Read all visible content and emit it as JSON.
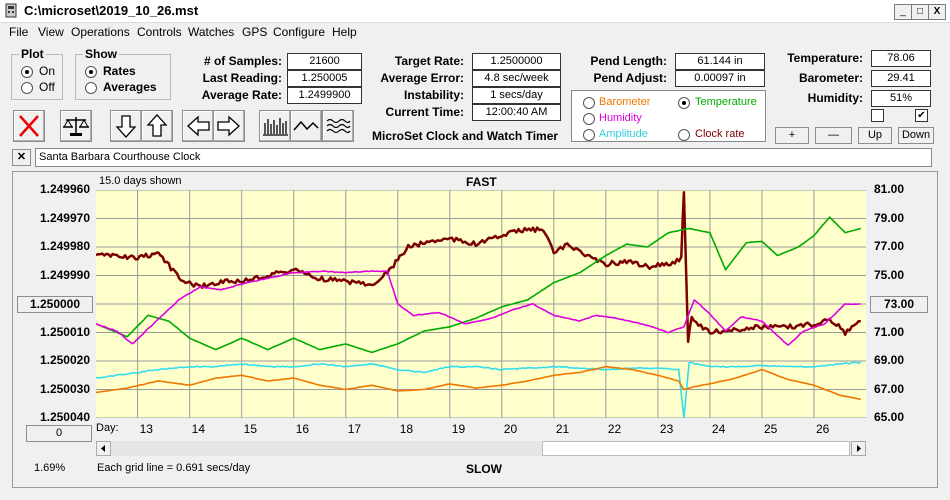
{
  "window": {
    "title": "C:\\microset\\2019_10_26.mst",
    "min": "_",
    "max": "□",
    "close": "X"
  },
  "menu": [
    "File",
    "View",
    "Operations",
    "Controls",
    "Watches",
    "GPS",
    "Configure",
    "Help"
  ],
  "plot_group": {
    "title": "Plot",
    "on": "On",
    "off": "Off",
    "selected": "On"
  },
  "show_group": {
    "title": "Show",
    "rates": "Rates",
    "averages": "Averages",
    "selected": "Rates"
  },
  "stats": {
    "samples_label": "# of Samples:",
    "samples": "21600",
    "last_label": "Last Reading:",
    "last": "1.250005",
    "avg_label": "Average Rate:",
    "avg": "1.2499900",
    "target_label": "Target Rate:",
    "target": "1.2500000",
    "avg_err_label": "Average Error:",
    "avg_err": "4.8 sec/week",
    "instab_label": "Instability:",
    "instab": "1 secs/day",
    "time_label": "Current Time:",
    "time": "12:00:40 AM",
    "pend_len_label": "Pend Length:",
    "pend_len": "61.144 in",
    "pend_adj_label": "Pend Adjust:",
    "pend_adj": "0.00097 in",
    "temp_label": "Temperature:",
    "temp": "78.06",
    "baro_label": "Barometer:",
    "baro": "29.41",
    "hum_label": "Humidity:",
    "hum": "51%"
  },
  "app_caption": "MicroSet Clock and Watch Timer",
  "sensor_options": {
    "barometer": "Barometer",
    "temperature": "Temperature",
    "humidity": "Humidity",
    "amplitude": "Amplitude",
    "clock_rate": "Clock rate",
    "selected": "Temperature"
  },
  "small_buttons": {
    "plus": "+",
    "minus": "—",
    "up": "Up",
    "down": "Down"
  },
  "checkboxes": {
    "left_checked": false,
    "right_checked": true
  },
  "clock_name": "Santa Barbara Courthouse Clock",
  "close_name": "✕",
  "chart_header": {
    "days_shown": "15.0 days shown",
    "fast": "FAST",
    "slow": "SLOW"
  },
  "chart_footer": {
    "grid": "Each grid line = 0.691 secs/day",
    "percent": "1.69%",
    "zero_btn": "0",
    "day_label": "Day:"
  },
  "colors": {
    "rate": "#7b0000",
    "temperature": "#00aa00",
    "humidity": "#dd00dd",
    "amplitude": "#33ddee",
    "barometer": "#ee7700"
  },
  "chart_data": {
    "type": "line",
    "x_label": "Day:",
    "x_ticks": [
      "13",
      "14",
      "15",
      "16",
      "17",
      "18",
      "19",
      "20",
      "21",
      "22",
      "23",
      "24",
      "25",
      "26"
    ],
    "xlim": [
      12.2,
      27.0
    ],
    "y_left_ticks": [
      "1.249960",
      "1.249970",
      "1.249980",
      "1.249990",
      "1.250000",
      "1.250010",
      "1.250020",
      "1.250030",
      "1.250040"
    ],
    "y_left_lim": [
      1.24996,
      1.25004
    ],
    "y_left_highlight": "1.250000",
    "y_right_ticks": [
      "81.00",
      "79.00",
      "77.00",
      "75.00",
      "73.00",
      "71.00",
      "69.00",
      "67.00",
      "65.00"
    ],
    "y_right_lim": [
      65,
      81
    ],
    "y_right_highlight": "73.00",
    "series": [
      {
        "key": "rate",
        "axis": "left",
        "noise": 0.8,
        "points": [
          [
            12.2,
            1.249983
          ],
          [
            12.6,
            1.249983
          ],
          [
            13.0,
            1.249984
          ],
          [
            13.4,
            1.249982
          ],
          [
            13.8,
            1.249991
          ],
          [
            14.2,
            1.249994
          ],
          [
            14.6,
            1.249992
          ],
          [
            15.0,
            1.249992
          ],
          [
            15.5,
            1.24999
          ],
          [
            16.0,
            1.249988
          ],
          [
            16.5,
            1.249991
          ],
          [
            17.0,
            1.249992
          ],
          [
            17.5,
            1.249993
          ],
          [
            17.8,
            1.249989
          ],
          [
            18.2,
            1.24998
          ],
          [
            18.6,
            1.249978
          ],
          [
            19.0,
            1.249977
          ],
          [
            19.5,
            1.249979
          ],
          [
            20.0,
            1.249976
          ],
          [
            20.4,
            1.249974
          ],
          [
            20.8,
            1.249974
          ],
          [
            21.0,
            1.249982
          ],
          [
            21.3,
            1.249979
          ],
          [
            21.6,
            1.249983
          ],
          [
            22.0,
            1.249986
          ],
          [
            22.4,
            1.249985
          ],
          [
            22.8,
            1.249987
          ],
          [
            23.2,
            1.249986
          ],
          [
            23.45,
            1.249984
          ],
          [
            23.5,
            1.24996
          ],
          [
            23.58,
            1.250013
          ],
          [
            23.65,
            1.250005
          ],
          [
            24.0,
            1.25001
          ],
          [
            24.5,
            1.250009
          ],
          [
            25.0,
            1.250008
          ],
          [
            25.5,
            1.250008
          ],
          [
            26.0,
            1.250007
          ],
          [
            26.3,
            1.250005
          ],
          [
            26.6,
            1.25001
          ],
          [
            26.9,
            1.250006
          ]
        ]
      },
      {
        "key": "temperature",
        "axis": "right",
        "noise": 0.04,
        "points": [
          [
            12.2,
            71.6
          ],
          [
            12.8,
            70.7
          ],
          [
            13.2,
            72.2
          ],
          [
            13.6,
            71.8
          ],
          [
            14.0,
            70.6
          ],
          [
            14.5,
            69.8
          ],
          [
            15.0,
            70.6
          ],
          [
            15.5,
            69.8
          ],
          [
            16.0,
            70.6
          ],
          [
            16.5,
            69.8
          ],
          [
            17.0,
            70.2
          ],
          [
            17.5,
            69.6
          ],
          [
            18.0,
            70.2
          ],
          [
            18.5,
            71.1
          ],
          [
            19.0,
            71.4
          ],
          [
            19.5,
            72.0
          ],
          [
            20.0,
            72.8
          ],
          [
            20.5,
            73.3
          ],
          [
            21.0,
            74.5
          ],
          [
            21.5,
            75.2
          ],
          [
            22.0,
            76.4
          ],
          [
            22.4,
            77.2
          ],
          [
            22.8,
            77.0
          ],
          [
            23.2,
            78.0
          ],
          [
            23.6,
            78.3
          ],
          [
            24.0,
            78.0
          ],
          [
            24.3,
            75.4
          ],
          [
            24.7,
            77.3
          ],
          [
            25.0,
            77.4
          ],
          [
            25.3,
            76.4
          ],
          [
            25.7,
            77.0
          ],
          [
            26.0,
            77.8
          ],
          [
            26.3,
            79.1
          ],
          [
            26.6,
            78.0
          ],
          [
            26.9,
            78.3
          ]
        ]
      },
      {
        "key": "humidity",
        "axis": "right",
        "noise": 0.12,
        "points": [
          [
            12.2,
            71.6
          ],
          [
            12.6,
            71.1
          ],
          [
            12.9,
            70.2
          ],
          [
            13.3,
            71.6
          ],
          [
            13.8,
            73.3
          ],
          [
            14.2,
            74.2
          ],
          [
            14.6,
            74.0
          ],
          [
            15.0,
            74.4
          ],
          [
            15.5,
            74.8
          ],
          [
            16.0,
            75.2
          ],
          [
            16.5,
            75.3
          ],
          [
            17.0,
            75.2
          ],
          [
            17.4,
            75.3
          ],
          [
            17.8,
            75.3
          ],
          [
            18.0,
            73.0
          ],
          [
            18.3,
            72.2
          ],
          [
            18.8,
            72.4
          ],
          [
            19.3,
            71.6
          ],
          [
            19.8,
            72.0
          ],
          [
            20.2,
            72.6
          ],
          [
            20.6,
            73.0
          ],
          [
            21.0,
            72.2
          ],
          [
            21.5,
            71.8
          ],
          [
            21.8,
            72.2
          ],
          [
            22.2,
            72.0
          ],
          [
            22.8,
            71.5
          ],
          [
            23.2,
            71.0
          ],
          [
            23.5,
            71.4
          ],
          [
            23.7,
            73.3
          ],
          [
            24.0,
            72.3
          ],
          [
            24.3,
            71.1
          ],
          [
            24.6,
            72.1
          ],
          [
            25.0,
            71.8
          ],
          [
            25.5,
            70.1
          ],
          [
            25.8,
            71.1
          ],
          [
            26.2,
            71.6
          ],
          [
            26.6,
            73.0
          ],
          [
            26.9,
            73.0
          ]
        ]
      },
      {
        "key": "amplitude",
        "axis": "right",
        "noise": 0.18,
        "points": [
          [
            12.2,
            67.8
          ],
          [
            12.8,
            68.1
          ],
          [
            13.4,
            68.4
          ],
          [
            14.0,
            68.6
          ],
          [
            14.5,
            68.6
          ],
          [
            15.0,
            68.8
          ],
          [
            15.5,
            68.6
          ],
          [
            16.0,
            68.6
          ],
          [
            16.5,
            68.8
          ],
          [
            17.0,
            68.6
          ],
          [
            17.5,
            68.8
          ],
          [
            18.0,
            68.4
          ],
          [
            18.5,
            68.2
          ],
          [
            19.0,
            68.6
          ],
          [
            19.5,
            68.6
          ],
          [
            20.0,
            68.4
          ],
          [
            20.5,
            68.5
          ],
          [
            21.0,
            68.6
          ],
          [
            21.5,
            68.5
          ],
          [
            22.0,
            68.4
          ],
          [
            22.5,
            68.5
          ],
          [
            23.0,
            68.5
          ],
          [
            23.4,
            68.4
          ],
          [
            23.5,
            65.0
          ],
          [
            23.6,
            68.9
          ],
          [
            24.0,
            68.6
          ],
          [
            24.5,
            68.6
          ],
          [
            25.0,
            68.7
          ],
          [
            25.5,
            68.6
          ],
          [
            26.0,
            68.6
          ],
          [
            26.5,
            68.8
          ],
          [
            26.9,
            68.9
          ]
        ]
      },
      {
        "key": "barometer",
        "axis": "right",
        "noise": 0.06,
        "points": [
          [
            12.2,
            66.8
          ],
          [
            12.8,
            67.1
          ],
          [
            13.4,
            67.6
          ],
          [
            14.0,
            67.3
          ],
          [
            14.5,
            67.8
          ],
          [
            15.0,
            68.0
          ],
          [
            15.5,
            67.6
          ],
          [
            16.0,
            67.8
          ],
          [
            16.5,
            67.3
          ],
          [
            17.0,
            67.0
          ],
          [
            17.5,
            67.3
          ],
          [
            18.0,
            66.9
          ],
          [
            18.5,
            67.0
          ],
          [
            19.0,
            67.4
          ],
          [
            19.5,
            67.1
          ],
          [
            20.0,
            67.3
          ],
          [
            20.5,
            67.6
          ],
          [
            21.0,
            68.0
          ],
          [
            21.5,
            68.2
          ],
          [
            22.0,
            68.6
          ],
          [
            22.5,
            68.4
          ],
          [
            23.0,
            68.0
          ],
          [
            23.4,
            67.6
          ],
          [
            23.5,
            67.0
          ],
          [
            23.7,
            67.2
          ],
          [
            24.0,
            67.4
          ],
          [
            24.5,
            67.8
          ],
          [
            25.0,
            68.4
          ],
          [
            25.5,
            67.7
          ],
          [
            26.0,
            67.3
          ],
          [
            26.5,
            66.6
          ],
          [
            26.9,
            66.3
          ]
        ]
      }
    ]
  }
}
